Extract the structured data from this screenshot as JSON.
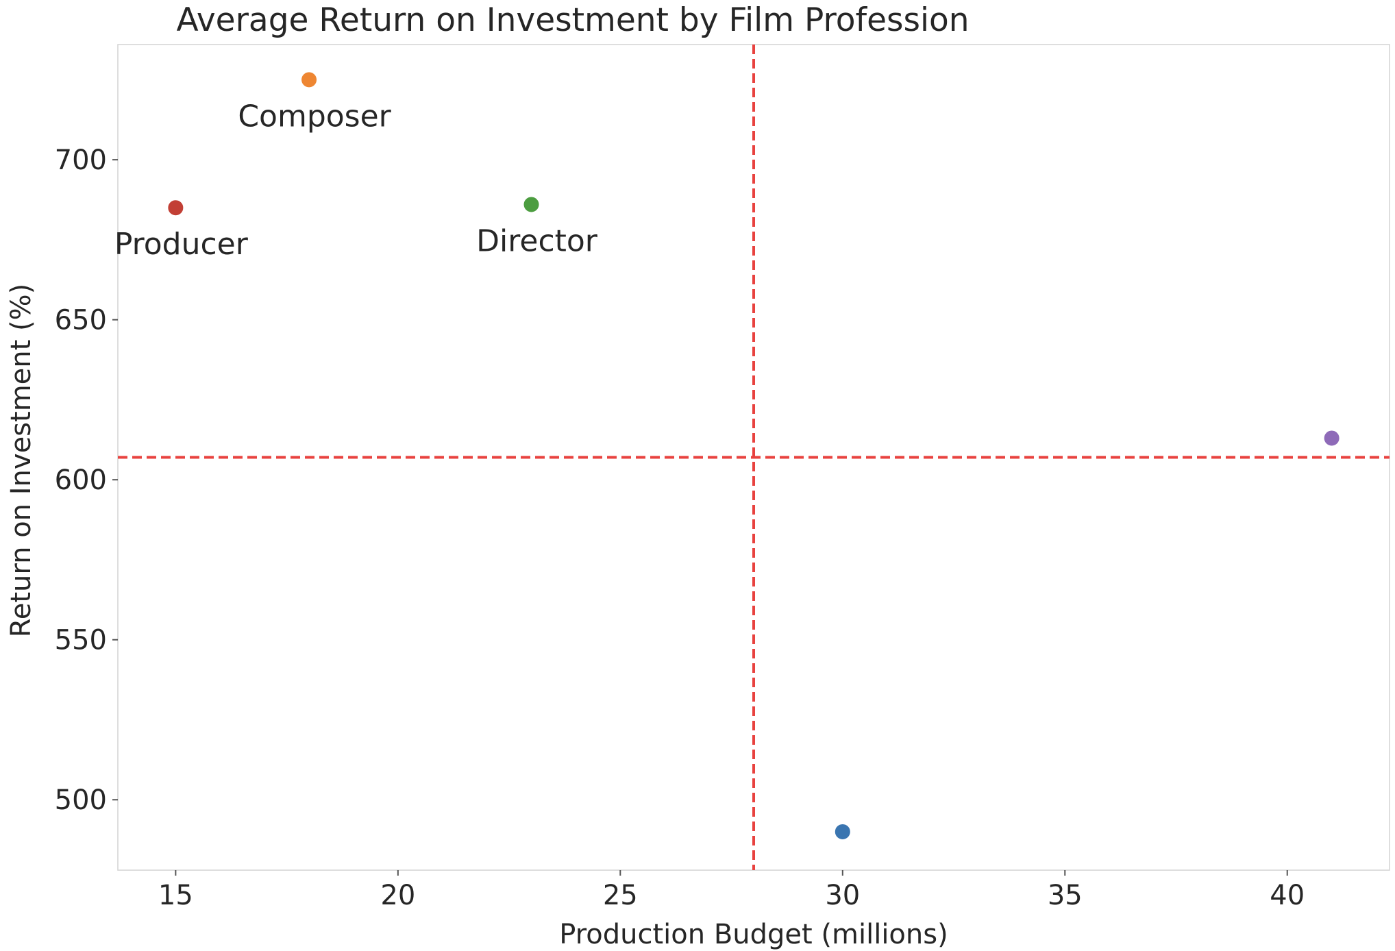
{
  "chart_data": {
    "type": "scatter",
    "title": "Average Return on Investment by Film Profession",
    "xlabel": "Production Budget (millions)",
    "ylabel": "Return on Investment (%)",
    "xlim": [
      13.7,
      42.3
    ],
    "ylim": [
      478,
      736
    ],
    "xticks": [
      15,
      20,
      25,
      30,
      35,
      40
    ],
    "yticks": [
      500,
      550,
      600,
      650,
      700
    ],
    "grid": false,
    "reference_lines": {
      "vertical_x": 28,
      "horizontal_y": 607,
      "color": "#e8423f",
      "style": "dashed"
    },
    "points": [
      {
        "x": 30,
        "y": 490,
        "label": "",
        "color": "#3a75b0"
      },
      {
        "x": 18,
        "y": 725,
        "label": "Composer",
        "color": "#ee8632"
      },
      {
        "x": 23,
        "y": 686,
        "label": "Director",
        "color": "#4c9d40"
      },
      {
        "x": 15,
        "y": 685,
        "label": "Producer",
        "color": "#c23f35"
      },
      {
        "x": 41,
        "y": 613,
        "label": "",
        "color": "#8e6ab8"
      }
    ]
  }
}
